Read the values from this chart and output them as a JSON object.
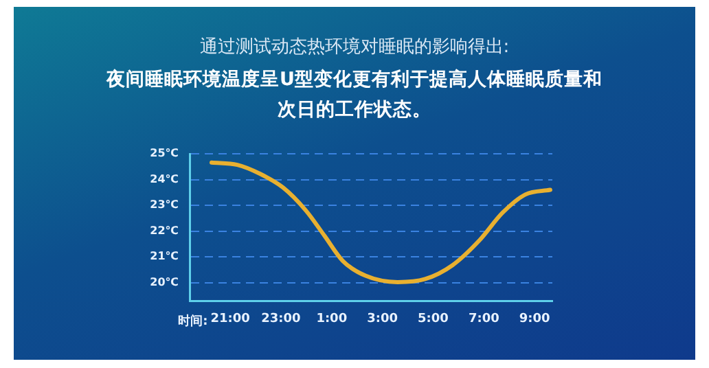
{
  "chart_data": {
    "type": "line",
    "subtitle": "通过测试动态热环境对睡眠的影响得出:",
    "title": "夜间睡眠环境温度呈U型变化更有利于提高人体睡眠质量和次日的工作状态。",
    "xlabel": "时间:",
    "series": [
      {
        "color": "#e8b030",
        "x": [
          "--01-01T20:16",
          "--01-01T21:17",
          "--01-01T22:11",
          "--01-01T23:05",
          "--01-01T23:59",
          "--01-02T00:43",
          "--01-02T01:26",
          "--01-02T02:20",
          "--01-02T03:36",
          "--01-02T04:41",
          "--01-02T05:46",
          "--01-02T06:50",
          "--01-02T07:44",
          "--01-02T08:38",
          "--01-02T09:37"
        ],
        "values": [
          24.66,
          24.57,
          24.22,
          23.69,
          22.8,
          21.82,
          20.85,
          20.27,
          20.02,
          20.14,
          20.68,
          21.65,
          22.71,
          23.42,
          23.6
        ]
      }
    ],
    "xlim": [
      "--01-01T19:24",
      "--01-02T09:42"
    ],
    "xticks": [
      {
        "value": "--01-01T21:00",
        "label": "21:00"
      },
      {
        "value": "--01-01T23:00",
        "label": "23:00"
      },
      {
        "value": "--01-02T01:00",
        "label": "1:00"
      },
      {
        "value": "--01-02T03:00",
        "label": "3:00"
      },
      {
        "value": "--01-02T05:00",
        "label": "5:00"
      },
      {
        "value": "--01-02T07:00",
        "label": "7:00"
      },
      {
        "value": "--01-02T09:00",
        "label": "9:00"
      }
    ],
    "ylim": [
      19.3,
      25
    ],
    "yticks": [
      {
        "value": 20,
        "label": "20℃"
      },
      {
        "value": 21,
        "label": "21℃"
      },
      {
        "value": 22,
        "label": "22℃"
      },
      {
        "value": 23,
        "label": "23℃"
      },
      {
        "value": 24,
        "label": "24℃"
      },
      {
        "value": 25,
        "label": "25℃"
      }
    ],
    "grid": "y",
    "line_style": "solid",
    "marker": "none",
    "legend": false
  }
}
